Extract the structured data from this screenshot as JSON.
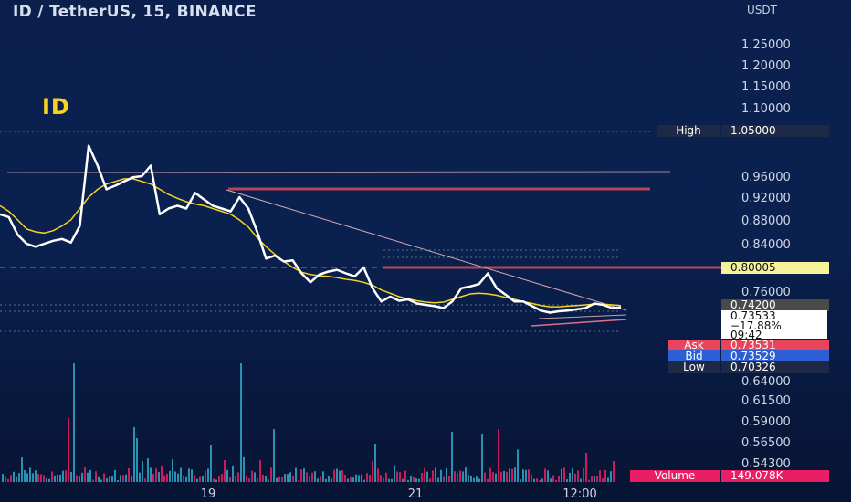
{
  "header": {
    "title": "ID / TetherUS, 15, BINANCE",
    "watermark": "ID",
    "currency": "USDT"
  },
  "colors": {
    "background": "#0b1f4d",
    "price_line": "#ffffff",
    "ma_line": "#f5d31e",
    "bull_volume": "#2fa8c8",
    "bear_volume": "#e91e63",
    "resistance": "#b8445a",
    "high_tag": "#1e2a45",
    "current_tag": "#f5f29a",
    "ask_tag": "#e8455c",
    "bid_tag": "#2c5fd4",
    "low_tag": "#1e2a45",
    "volume_tag": "#e91e63"
  },
  "price_axis": {
    "ticks": [
      "1.25000",
      "1.20000",
      "1.15000",
      "1.10000",
      "0.96000",
      "0.92000",
      "0.88000",
      "0.84000",
      "0.76000",
      "0.64000",
      "0.61500",
      "0.59000",
      "0.56500",
      "0.54300"
    ]
  },
  "tags": {
    "high_label": "High",
    "high_value": "1.05000",
    "level_value": "0.80005",
    "prev_value": "0.74200",
    "last_price": "0.73533",
    "last_change": "−17.88%",
    "countdown": "09:42",
    "ask_label": "Ask",
    "ask_value": "0.73531",
    "bid_label": "Bid",
    "bid_value": "0.73529",
    "low_label": "Low",
    "low_value": "0.70326",
    "volume_label": "Volume",
    "volume_value": "149.078K"
  },
  "chart_data": {
    "type": "line",
    "title": "ID / TetherUS, 15, BINANCE",
    "xlabel": "",
    "ylabel": "",
    "x_ticks": [
      "19",
      "21",
      "12:00"
    ],
    "grid": false,
    "series": [
      {
        "values": [
          0.89,
          0.885,
          0.855,
          0.84,
          0.835,
          0.84,
          0.845,
          0.848,
          0.842,
          0.87,
          1.02,
          0.98,
          0.935,
          0.942,
          0.95,
          0.958,
          0.96,
          0.98,
          0.89,
          0.9,
          0.905,
          0.9,
          0.928,
          0.916,
          0.905,
          0.9,
          0.895,
          0.92,
          0.9,
          0.86,
          0.815,
          0.82,
          0.81,
          0.812,
          0.79,
          0.775,
          0.788,
          0.793,
          0.796,
          0.79,
          0.785,
          0.8,
          0.765,
          0.745,
          0.752,
          0.746,
          0.748,
          0.742,
          0.74,
          0.738,
          0.735,
          0.745,
          0.765,
          0.768,
          0.772,
          0.79,
          0.765,
          0.755,
          0.745,
          0.745,
          0.738,
          0.731,
          0.728,
          0.73,
          0.731,
          0.733,
          0.735,
          0.742,
          0.74,
          0.735,
          0.736
        ]
      },
      {
        "values": [
          0.905,
          0.895,
          0.88,
          0.865,
          0.86,
          0.858,
          0.862,
          0.87,
          0.88,
          0.9,
          0.92,
          0.935,
          0.945,
          0.95,
          0.955,
          0.955,
          0.95,
          0.945,
          0.935,
          0.925,
          0.918,
          0.912,
          0.908,
          0.905,
          0.9,
          0.895,
          0.89,
          0.88,
          0.868,
          0.85,
          0.835,
          0.822,
          0.81,
          0.8,
          0.792,
          0.788,
          0.786,
          0.785,
          0.783,
          0.78,
          0.778,
          0.775,
          0.77,
          0.762,
          0.757,
          0.752,
          0.749,
          0.746,
          0.744,
          0.743,
          0.744,
          0.748,
          0.752,
          0.756,
          0.757,
          0.756,
          0.754,
          0.751,
          0.748,
          0.745,
          0.742,
          0.739,
          0.737,
          0.737,
          0.738,
          0.739,
          0.74,
          0.741,
          0.741,
          0.74,
          0.739
        ]
      }
    ],
    "ylim": [
      0.53,
      1.3
    ]
  }
}
